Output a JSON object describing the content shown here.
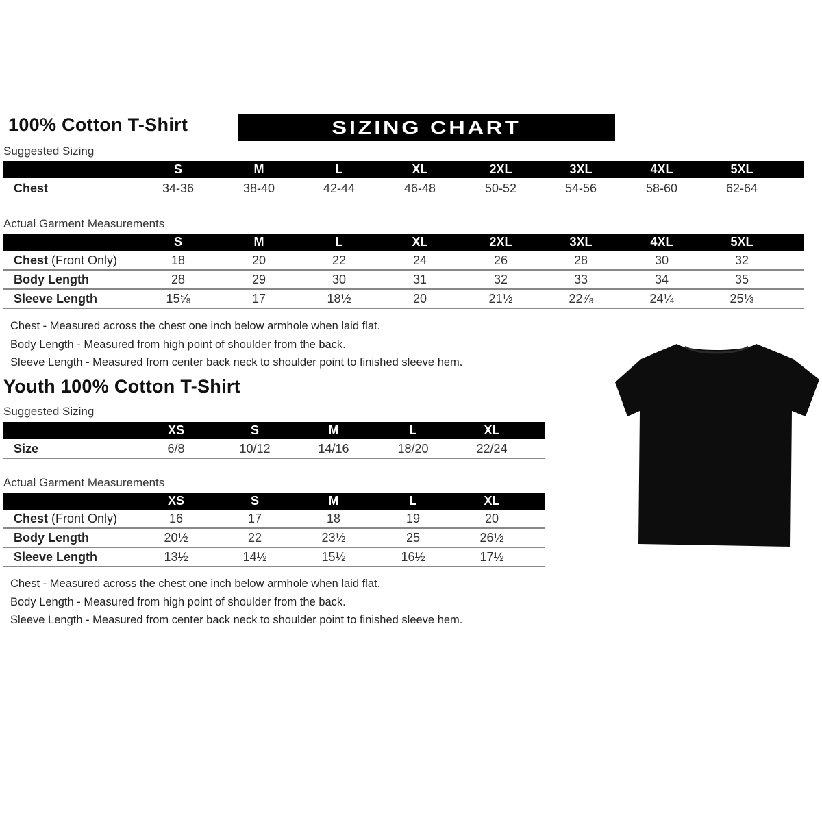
{
  "adult": {
    "title": "100% Cotton T-Shirt",
    "banner": "SIZING CHART",
    "suggested_label": "Suggested Sizing",
    "sizes": [
      "S",
      "M",
      "L",
      "XL",
      "2XL",
      "3XL",
      "4XL",
      "5XL"
    ],
    "suggested_rows": [
      {
        "label": "Chest",
        "label_suffix": "",
        "values": [
          "34-36",
          "38-40",
          "42-44",
          "46-48",
          "50-52",
          "54-56",
          "58-60",
          "62-64"
        ]
      }
    ],
    "actual_label": "Actual Garment Measurements",
    "actual_rows": [
      {
        "label": "Chest",
        "label_suffix": " (Front Only)",
        "values": [
          "18",
          "20",
          "22",
          "24",
          "26",
          "28",
          "30",
          "32"
        ]
      },
      {
        "label": "Body Length",
        "label_suffix": "",
        "values": [
          "28",
          "29",
          "30",
          "31",
          "32",
          "33",
          "34",
          "35"
        ]
      },
      {
        "label": "Sleeve Length",
        "label_suffix": "",
        "values": [
          "15⅝",
          "17",
          "18½",
          "20",
          "21½",
          "22⅞",
          "24¼",
          "25⅓"
        ]
      }
    ],
    "notes": [
      "Chest - Measured across the chest one inch below armhole when laid flat.",
      "Body Length - Measured from high point of shoulder from the back.",
      "Sleeve Length - Measured from center back neck to shoulder point to finished sleeve hem."
    ]
  },
  "youth": {
    "title": "Youth 100% Cotton T-Shirt",
    "suggested_label": "Suggested Sizing",
    "sizes": [
      "XS",
      "S",
      "M",
      "L",
      "XL"
    ],
    "suggested_rows": [
      {
        "label": "Size",
        "label_suffix": "",
        "values": [
          "6/8",
          "10/12",
          "14/16",
          "18/20",
          "22/24"
        ]
      }
    ],
    "actual_label": "Actual Garment Measurements",
    "actual_rows": [
      {
        "label": "Chest",
        "label_suffix": " (Front Only)",
        "values": [
          "16",
          "17",
          "18",
          "19",
          "20"
        ]
      },
      {
        "label": "Body Length",
        "label_suffix": "",
        "values": [
          "20½",
          "22",
          "23½",
          "25",
          "26½"
        ]
      },
      {
        "label": "Sleeve Length",
        "label_suffix": "",
        "values": [
          "13½",
          "14½",
          "15½",
          "16½",
          "17½"
        ]
      }
    ],
    "notes": [
      "Chest - Measured across the chest one inch below armhole when laid flat.",
      "Body Length - Measured from high point of shoulder from the back.",
      "Sleeve Length - Measured from center back neck to shoulder point to finished sleeve hem."
    ]
  },
  "colors": {
    "header_bg": "#000000",
    "header_text": "#ffffff",
    "shirt": "#0d0d0d",
    "divider": "#888888"
  },
  "image": {
    "icon": "black-tshirt-icon"
  }
}
